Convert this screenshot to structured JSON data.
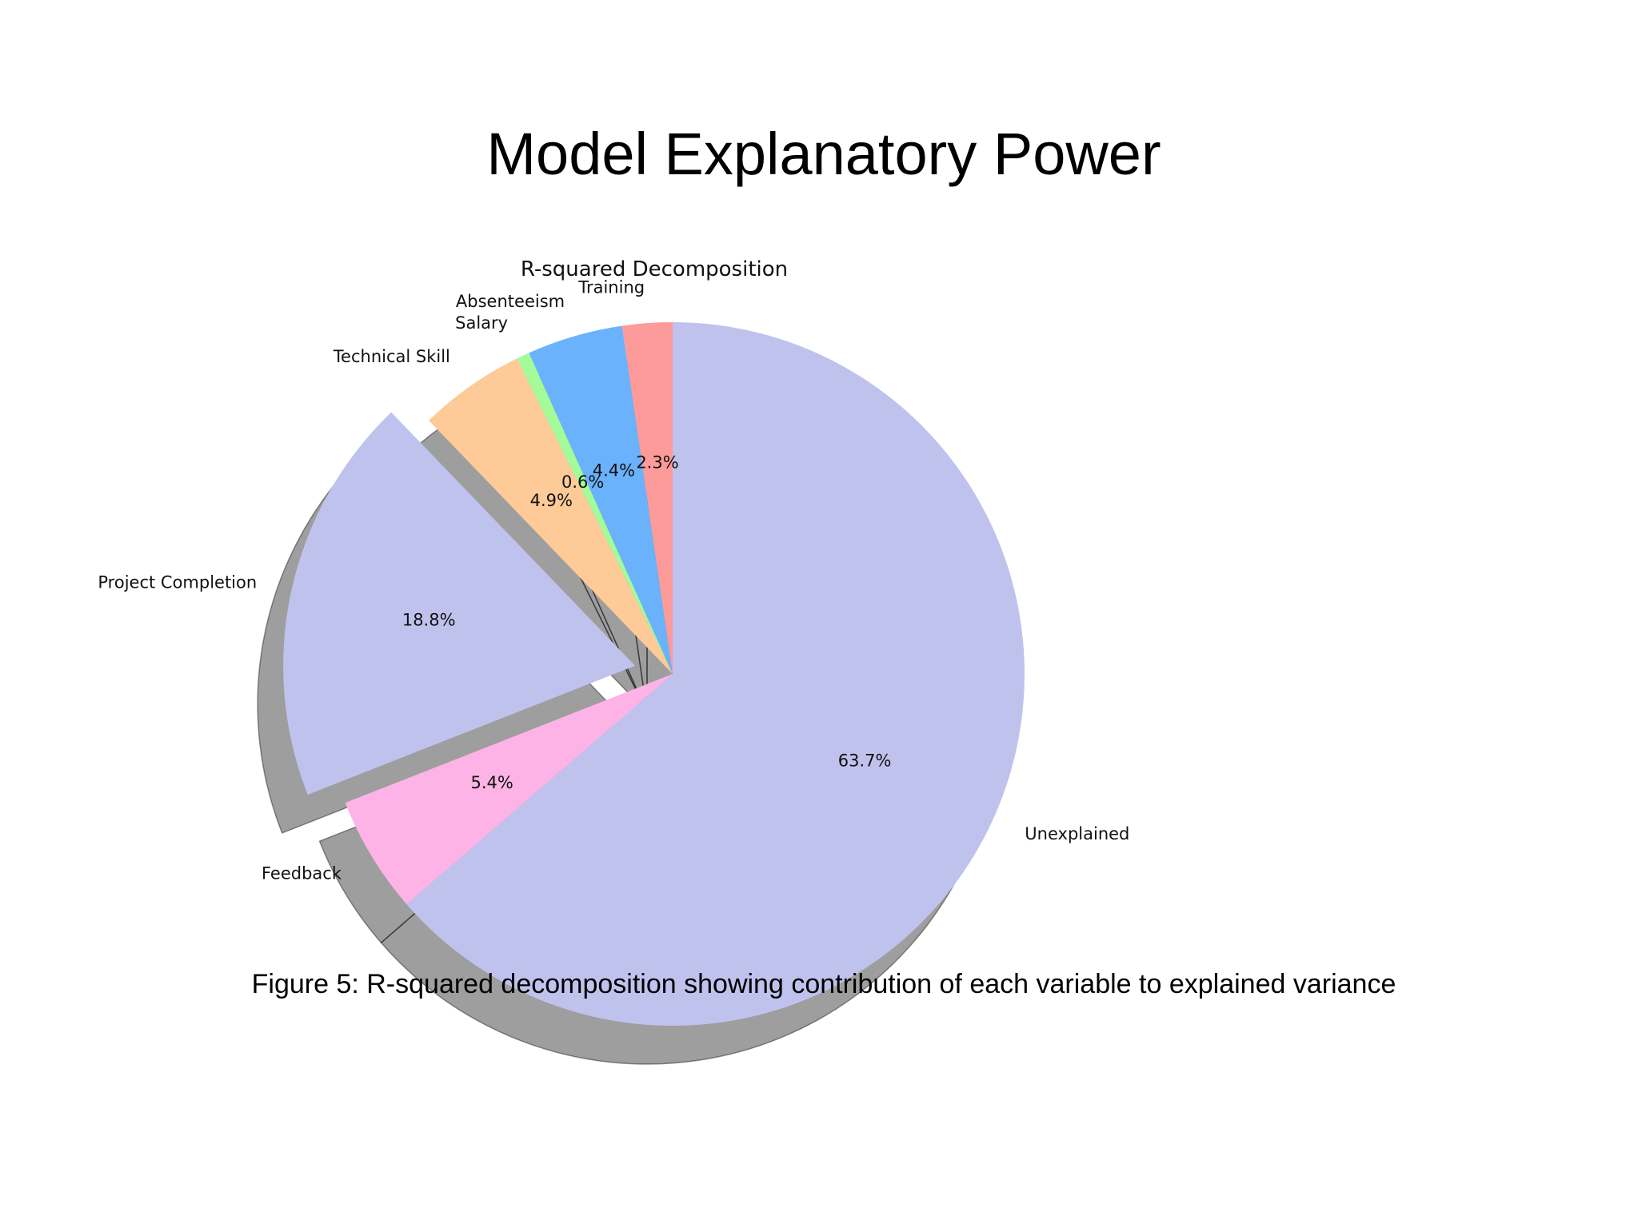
{
  "slide": {
    "title": "Model Explanatory Power",
    "caption": "Figure 5: R-squared decomposition showing contribution of each variable to explained variance"
  },
  "chart_data": {
    "type": "pie",
    "title": "R-squared Decomposition",
    "start_angle_deg": 90,
    "direction": "clockwise",
    "shadow": true,
    "exploded": [
      "Project Completion"
    ],
    "slices": [
      {
        "label": "Unexplained",
        "value": 63.7,
        "pct_label": "63.7%",
        "color": "#c0c2ee"
      },
      {
        "label": "Feedback",
        "value": 5.4,
        "pct_label": "5.4%",
        "color": "#fdb3e6"
      },
      {
        "label": "Project Completion",
        "value": 18.8,
        "pct_label": "18.8%",
        "color": "#c0c2ee"
      },
      {
        "label": "Technical Skill",
        "value": 4.9,
        "pct_label": "4.9%",
        "color": "#fdca98"
      },
      {
        "label": "Salary",
        "value": 0.6,
        "pct_label": "0.6%",
        "color": "#a3fb99"
      },
      {
        "label": "Absenteeism",
        "value": 4.4,
        "pct_label": "4.4%",
        "color": "#6ab2fb"
      },
      {
        "label": "Training",
        "value": 2.3,
        "pct_label": "2.3%",
        "color": "#fd9a9a"
      }
    ]
  }
}
